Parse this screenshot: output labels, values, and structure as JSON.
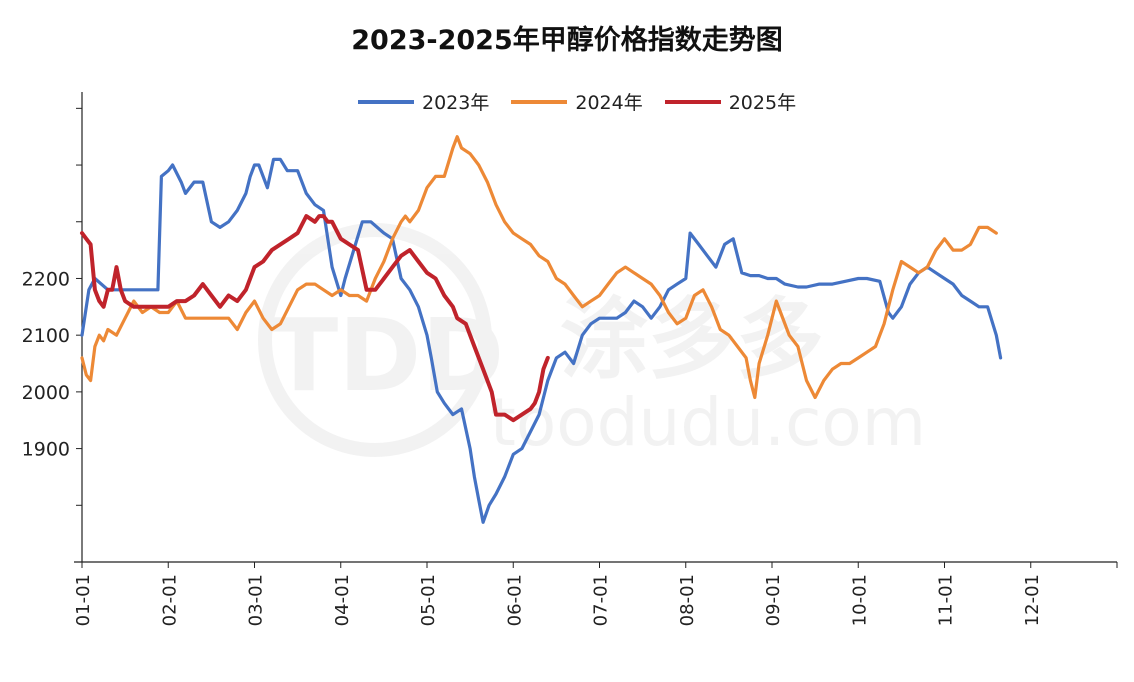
{
  "chart_data": {
    "type": "line",
    "title": "2023-2025年甲醇价格指数走势图",
    "xlabel": "",
    "ylabel": "",
    "x_tick_labels": [
      "01-01",
      "02-01",
      "03-01",
      "04-01",
      "05-01",
      "06-01",
      "07-01",
      "08-01",
      "09-01",
      "10-01",
      "11-01",
      "12-01"
    ],
    "y_tick_labels": [
      "1900",
      "2000",
      "2100",
      "2200"
    ],
    "y_ticks_all": [
      1800,
      1900,
      2000,
      2100,
      2200,
      2300,
      2400,
      2500
    ],
    "ylim": [
      1700,
      2520
    ],
    "x_domain_months": [
      0,
      12
    ],
    "legend_position": "top",
    "grid": false,
    "series": [
      {
        "name": "2023年",
        "color": "#4472c4",
        "points": [
          [
            0.0,
            2100
          ],
          [
            0.08,
            2180
          ],
          [
            0.15,
            2200
          ],
          [
            0.3,
            2180
          ],
          [
            0.55,
            2180
          ],
          [
            0.8,
            2180
          ],
          [
            0.88,
            2180
          ],
          [
            0.92,
            2380
          ],
          [
            1.0,
            2390
          ],
          [
            1.05,
            2400
          ],
          [
            1.15,
            2370
          ],
          [
            1.2,
            2350
          ],
          [
            1.3,
            2370
          ],
          [
            1.4,
            2370
          ],
          [
            1.5,
            2300
          ],
          [
            1.6,
            2290
          ],
          [
            1.7,
            2300
          ],
          [
            1.8,
            2320
          ],
          [
            1.9,
            2350
          ],
          [
            1.95,
            2380
          ],
          [
            2.0,
            2400
          ],
          [
            2.05,
            2400
          ],
          [
            2.15,
            2360
          ],
          [
            2.22,
            2410
          ],
          [
            2.3,
            2410
          ],
          [
            2.38,
            2390
          ],
          [
            2.5,
            2390
          ],
          [
            2.6,
            2350
          ],
          [
            2.7,
            2330
          ],
          [
            2.8,
            2320
          ],
          [
            2.9,
            2220
          ],
          [
            3.0,
            2170
          ],
          [
            3.05,
            2200
          ],
          [
            3.15,
            2250
          ],
          [
            3.25,
            2300
          ],
          [
            3.35,
            2300
          ],
          [
            3.5,
            2280
          ],
          [
            3.6,
            2270
          ],
          [
            3.7,
            2200
          ],
          [
            3.8,
            2180
          ],
          [
            3.9,
            2150
          ],
          [
            4.0,
            2100
          ],
          [
            4.05,
            2060
          ],
          [
            4.12,
            2000
          ],
          [
            4.2,
            1980
          ],
          [
            4.3,
            1960
          ],
          [
            4.4,
            1970
          ],
          [
            4.5,
            1900
          ],
          [
            4.55,
            1850
          ],
          [
            4.6,
            1810
          ],
          [
            4.65,
            1770
          ],
          [
            4.72,
            1800
          ],
          [
            4.8,
            1820
          ],
          [
            4.9,
            1850
          ],
          [
            5.0,
            1890
          ],
          [
            5.1,
            1900
          ],
          [
            5.2,
            1930
          ],
          [
            5.3,
            1960
          ],
          [
            5.4,
            2020
          ],
          [
            5.5,
            2060
          ],
          [
            5.6,
            2070
          ],
          [
            5.7,
            2050
          ],
          [
            5.8,
            2100
          ],
          [
            5.9,
            2120
          ],
          [
            6.0,
            2130
          ],
          [
            6.1,
            2130
          ],
          [
            6.2,
            2130
          ],
          [
            6.3,
            2140
          ],
          [
            6.4,
            2160
          ],
          [
            6.5,
            2150
          ],
          [
            6.6,
            2130
          ],
          [
            6.7,
            2150
          ],
          [
            6.8,
            2180
          ],
          [
            6.9,
            2190
          ],
          [
            7.0,
            2200
          ],
          [
            7.05,
            2280
          ],
          [
            7.15,
            2260
          ],
          [
            7.25,
            2240
          ],
          [
            7.35,
            2220
          ],
          [
            7.45,
            2260
          ],
          [
            7.55,
            2270
          ],
          [
            7.65,
            2210
          ],
          [
            7.75,
            2205
          ],
          [
            7.85,
            2205
          ],
          [
            7.95,
            2200
          ],
          [
            8.05,
            2200
          ],
          [
            8.15,
            2190
          ],
          [
            8.3,
            2185
          ],
          [
            8.4,
            2185
          ],
          [
            8.55,
            2190
          ],
          [
            8.7,
            2190
          ],
          [
            8.85,
            2195
          ],
          [
            9.0,
            2200
          ],
          [
            9.1,
            2200
          ],
          [
            9.25,
            2195
          ],
          [
            9.35,
            2140
          ],
          [
            9.4,
            2130
          ],
          [
            9.5,
            2150
          ],
          [
            9.6,
            2190
          ],
          [
            9.7,
            2210
          ],
          [
            9.8,
            2220
          ],
          [
            9.9,
            2210
          ],
          [
            10.0,
            2200
          ],
          [
            10.1,
            2190
          ],
          [
            10.2,
            2170
          ],
          [
            10.3,
            2160
          ],
          [
            10.4,
            2150
          ],
          [
            10.5,
            2150
          ],
          [
            10.6,
            2100
          ],
          [
            10.65,
            2060
          ]
        ]
      },
      {
        "name": "2024年",
        "color": "#ed8936",
        "points": [
          [
            0.0,
            2060
          ],
          [
            0.05,
            2030
          ],
          [
            0.1,
            2020
          ],
          [
            0.15,
            2080
          ],
          [
            0.2,
            2100
          ],
          [
            0.25,
            2090
          ],
          [
            0.3,
            2110
          ],
          [
            0.4,
            2100
          ],
          [
            0.5,
            2130
          ],
          [
            0.6,
            2160
          ],
          [
            0.7,
            2140
          ],
          [
            0.8,
            2150
          ],
          [
            0.9,
            2140
          ],
          [
            1.0,
            2140
          ],
          [
            1.1,
            2160
          ],
          [
            1.2,
            2130
          ],
          [
            1.3,
            2130
          ],
          [
            1.5,
            2130
          ],
          [
            1.7,
            2130
          ],
          [
            1.8,
            2110
          ],
          [
            1.9,
            2140
          ],
          [
            2.0,
            2160
          ],
          [
            2.1,
            2130
          ],
          [
            2.2,
            2110
          ],
          [
            2.3,
            2120
          ],
          [
            2.4,
            2150
          ],
          [
            2.5,
            2180
          ],
          [
            2.6,
            2190
          ],
          [
            2.7,
            2190
          ],
          [
            2.8,
            2180
          ],
          [
            2.9,
            2170
          ],
          [
            3.0,
            2180
          ],
          [
            3.1,
            2170
          ],
          [
            3.2,
            2170
          ],
          [
            3.3,
            2160
          ],
          [
            3.4,
            2200
          ],
          [
            3.5,
            2230
          ],
          [
            3.6,
            2270
          ],
          [
            3.7,
            2300
          ],
          [
            3.75,
            2310
          ],
          [
            3.8,
            2300
          ],
          [
            3.9,
            2320
          ],
          [
            4.0,
            2360
          ],
          [
            4.1,
            2380
          ],
          [
            4.2,
            2380
          ],
          [
            4.3,
            2430
          ],
          [
            4.35,
            2450
          ],
          [
            4.4,
            2430
          ],
          [
            4.5,
            2420
          ],
          [
            4.6,
            2400
          ],
          [
            4.7,
            2370
          ],
          [
            4.8,
            2330
          ],
          [
            4.9,
            2300
          ],
          [
            5.0,
            2280
          ],
          [
            5.1,
            2270
          ],
          [
            5.2,
            2260
          ],
          [
            5.3,
            2240
          ],
          [
            5.4,
            2230
          ],
          [
            5.5,
            2200
          ],
          [
            5.6,
            2190
          ],
          [
            5.7,
            2170
          ],
          [
            5.8,
            2150
          ],
          [
            5.9,
            2160
          ],
          [
            6.0,
            2170
          ],
          [
            6.1,
            2190
          ],
          [
            6.2,
            2210
          ],
          [
            6.3,
            2220
          ],
          [
            6.4,
            2210
          ],
          [
            6.5,
            2200
          ],
          [
            6.6,
            2190
          ],
          [
            6.7,
            2170
          ],
          [
            6.8,
            2140
          ],
          [
            6.9,
            2120
          ],
          [
            7.0,
            2130
          ],
          [
            7.1,
            2170
          ],
          [
            7.2,
            2180
          ],
          [
            7.3,
            2150
          ],
          [
            7.4,
            2110
          ],
          [
            7.5,
            2100
          ],
          [
            7.6,
            2080
          ],
          [
            7.7,
            2060
          ],
          [
            7.75,
            2020
          ],
          [
            7.8,
            1990
          ],
          [
            7.85,
            2050
          ],
          [
            7.95,
            2100
          ],
          [
            8.05,
            2160
          ],
          [
            8.1,
            2140
          ],
          [
            8.2,
            2100
          ],
          [
            8.3,
            2080
          ],
          [
            8.4,
            2020
          ],
          [
            8.5,
            1990
          ],
          [
            8.6,
            2020
          ],
          [
            8.7,
            2040
          ],
          [
            8.8,
            2050
          ],
          [
            8.9,
            2050
          ],
          [
            9.0,
            2060
          ],
          [
            9.1,
            2070
          ],
          [
            9.2,
            2080
          ],
          [
            9.3,
            2120
          ],
          [
            9.4,
            2180
          ],
          [
            9.5,
            2230
          ],
          [
            9.6,
            2220
          ],
          [
            9.7,
            2210
          ],
          [
            9.8,
            2220
          ],
          [
            9.9,
            2250
          ],
          [
            10.0,
            2270
          ],
          [
            10.1,
            2250
          ],
          [
            10.2,
            2250
          ],
          [
            10.3,
            2260
          ],
          [
            10.4,
            2290
          ],
          [
            10.5,
            2290
          ],
          [
            10.6,
            2280
          ]
        ]
      },
      {
        "name": "2025年",
        "color": "#c0232b",
        "points": [
          [
            0.0,
            2280
          ],
          [
            0.05,
            2270
          ],
          [
            0.1,
            2260
          ],
          [
            0.15,
            2180
          ],
          [
            0.2,
            2160
          ],
          [
            0.25,
            2150
          ],
          [
            0.3,
            2180
          ],
          [
            0.35,
            2180
          ],
          [
            0.4,
            2220
          ],
          [
            0.45,
            2180
          ],
          [
            0.5,
            2160
          ],
          [
            0.6,
            2150
          ],
          [
            0.7,
            2150
          ],
          [
            0.8,
            2150
          ],
          [
            0.9,
            2150
          ],
          [
            1.0,
            2150
          ],
          [
            1.1,
            2160
          ],
          [
            1.2,
            2160
          ],
          [
            1.3,
            2170
          ],
          [
            1.4,
            2190
          ],
          [
            1.5,
            2170
          ],
          [
            1.6,
            2150
          ],
          [
            1.7,
            2170
          ],
          [
            1.8,
            2160
          ],
          [
            1.9,
            2180
          ],
          [
            2.0,
            2220
          ],
          [
            2.1,
            2230
          ],
          [
            2.2,
            2250
          ],
          [
            2.3,
            2260
          ],
          [
            2.4,
            2270
          ],
          [
            2.5,
            2280
          ],
          [
            2.6,
            2310
          ],
          [
            2.7,
            2300
          ],
          [
            2.75,
            2310
          ],
          [
            2.8,
            2310
          ],
          [
            2.85,
            2300
          ],
          [
            2.9,
            2300
          ],
          [
            3.0,
            2270
          ],
          [
            3.1,
            2260
          ],
          [
            3.2,
            2250
          ],
          [
            3.3,
            2180
          ],
          [
            3.4,
            2180
          ],
          [
            3.5,
            2200
          ],
          [
            3.6,
            2220
          ],
          [
            3.7,
            2240
          ],
          [
            3.8,
            2250
          ],
          [
            3.9,
            2230
          ],
          [
            4.0,
            2210
          ],
          [
            4.1,
            2200
          ],
          [
            4.2,
            2170
          ],
          [
            4.3,
            2150
          ],
          [
            4.35,
            2130
          ],
          [
            4.45,
            2120
          ],
          [
            4.55,
            2080
          ],
          [
            4.65,
            2040
          ],
          [
            4.75,
            2000
          ],
          [
            4.8,
            1960
          ],
          [
            4.9,
            1960
          ],
          [
            5.0,
            1950
          ],
          [
            5.1,
            1960
          ],
          [
            5.2,
            1970
          ],
          [
            5.25,
            1980
          ],
          [
            5.3,
            2000
          ],
          [
            5.35,
            2040
          ],
          [
            5.4,
            2060
          ]
        ]
      }
    ]
  },
  "watermark": {
    "logo_text": "TDD",
    "chinese_text": "涂多多",
    "url_text": "toodudu.com"
  }
}
